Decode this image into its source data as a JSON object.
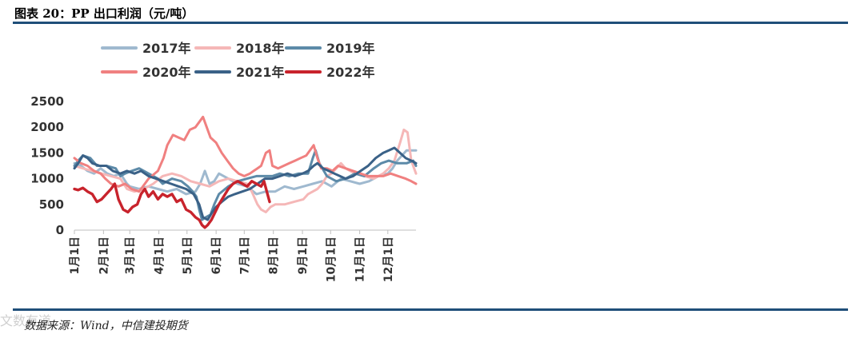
{
  "header": {
    "title": "图表 20：PP 出口利润（元/吨）"
  },
  "footer": {
    "source": "数据来源：Wind，中信建投期货",
    "watermark": "文数有道"
  },
  "chart_data": {
    "type": "line",
    "title": "",
    "xlabel": "",
    "ylabel": "",
    "ylim": [
      0,
      2500
    ],
    "yticks": [
      0,
      500,
      1000,
      1500,
      2000,
      2500
    ],
    "xtick_labels": [
      "1月1日",
      "2月1日",
      "3月1日",
      "4月1日",
      "5月1日",
      "6月1日",
      "7月1日",
      "8月1日",
      "9月1日",
      "10月1日",
      "11月1日",
      "12月1日"
    ],
    "xtick_days": [
      1,
      32,
      60,
      91,
      121,
      152,
      182,
      213,
      244,
      274,
      305,
      335
    ],
    "x_range_days": [
      1,
      365
    ],
    "grid": false,
    "legend_position": "top",
    "series": [
      {
        "name": "2017年",
        "color": "#9fb9cf",
        "points": [
          [
            1,
            1300
          ],
          [
            8,
            1250
          ],
          [
            15,
            1150
          ],
          [
            22,
            1100
          ],
          [
            29,
            1200
          ],
          [
            36,
            1100
          ],
          [
            43,
            1050
          ],
          [
            50,
            1100
          ],
          [
            57,
            900
          ],
          [
            60,
            850
          ],
          [
            70,
            800
          ],
          [
            80,
            850
          ],
          [
            90,
            800
          ],
          [
            100,
            750
          ],
          [
            110,
            800
          ],
          [
            120,
            700
          ],
          [
            130,
            750
          ],
          [
            135,
            900
          ],
          [
            140,
            1150
          ],
          [
            145,
            900
          ],
          [
            150,
            950
          ],
          [
            155,
            1100
          ],
          [
            165,
            1000
          ],
          [
            175,
            900
          ],
          [
            185,
            850
          ],
          [
            195,
            700
          ],
          [
            205,
            750
          ],
          [
            215,
            750
          ],
          [
            225,
            850
          ],
          [
            235,
            800
          ],
          [
            245,
            850
          ],
          [
            255,
            900
          ],
          [
            265,
            950
          ],
          [
            275,
            850
          ],
          [
            285,
            1000
          ],
          [
            295,
            950
          ],
          [
            305,
            900
          ],
          [
            315,
            950
          ],
          [
            325,
            1050
          ],
          [
            335,
            1100
          ],
          [
            340,
            1200
          ],
          [
            345,
            1350
          ],
          [
            350,
            1450
          ],
          [
            355,
            1550
          ],
          [
            365,
            1550
          ]
        ]
      },
      {
        "name": "2018年",
        "color": "#f5b7b7",
        "points": [
          [
            1,
            1250
          ],
          [
            10,
            1200
          ],
          [
            20,
            1150
          ],
          [
            30,
            1100
          ],
          [
            40,
            1050
          ],
          [
            50,
            1000
          ],
          [
            57,
            800
          ],
          [
            65,
            750
          ],
          [
            75,
            800
          ],
          [
            85,
            900
          ],
          [
            95,
            1050
          ],
          [
            105,
            1100
          ],
          [
            115,
            1050
          ],
          [
            125,
            950
          ],
          [
            135,
            900
          ],
          [
            145,
            850
          ],
          [
            155,
            950
          ],
          [
            165,
            1000
          ],
          [
            175,
            950
          ],
          [
            185,
            900
          ],
          [
            190,
            750
          ],
          [
            196,
            500
          ],
          [
            200,
            400
          ],
          [
            205,
            350
          ],
          [
            210,
            450
          ],
          [
            215,
            500
          ],
          [
            225,
            500
          ],
          [
            235,
            550
          ],
          [
            245,
            600
          ],
          [
            250,
            700
          ],
          [
            255,
            750
          ],
          [
            260,
            800
          ],
          [
            265,
            900
          ],
          [
            270,
            1050
          ],
          [
            275,
            1100
          ],
          [
            280,
            1200
          ],
          [
            285,
            1300
          ],
          [
            290,
            1200
          ],
          [
            300,
            1100
          ],
          [
            310,
            1050
          ],
          [
            320,
            1000
          ],
          [
            330,
            1100
          ],
          [
            336,
            1200
          ],
          [
            342,
            1350
          ],
          [
            348,
            1700
          ],
          [
            352,
            1950
          ],
          [
            356,
            1900
          ],
          [
            360,
            1350
          ],
          [
            365,
            1100
          ]
        ]
      },
      {
        "name": "2019年",
        "color": "#5c8aa8",
        "points": [
          [
            1,
            1250
          ],
          [
            5,
            1350
          ],
          [
            10,
            1450
          ],
          [
            18,
            1400
          ],
          [
            25,
            1250
          ],
          [
            35,
            1250
          ],
          [
            45,
            1200
          ],
          [
            50,
            1050
          ],
          [
            55,
            1100
          ],
          [
            62,
            1150
          ],
          [
            70,
            1200
          ],
          [
            80,
            1100
          ],
          [
            90,
            1000
          ],
          [
            95,
            900
          ],
          [
            105,
            1000
          ],
          [
            115,
            950
          ],
          [
            122,
            850
          ],
          [
            127,
            750
          ],
          [
            131,
            650
          ],
          [
            134,
            400
          ],
          [
            137,
            200
          ],
          [
            141,
            250
          ],
          [
            146,
            300
          ],
          [
            150,
            500
          ],
          [
            155,
            700
          ],
          [
            165,
            850
          ],
          [
            175,
            950
          ],
          [
            185,
            1000
          ],
          [
            195,
            1050
          ],
          [
            205,
            1050
          ],
          [
            212,
            1050
          ],
          [
            220,
            1100
          ],
          [
            230,
            1050
          ],
          [
            240,
            1100
          ],
          [
            250,
            1100
          ],
          [
            255,
            1400
          ],
          [
            258,
            1550
          ],
          [
            262,
            1300
          ],
          [
            270,
            1050
          ],
          [
            280,
            950
          ],
          [
            290,
            1000
          ],
          [
            300,
            1100
          ],
          [
            310,
            1050
          ],
          [
            320,
            1200
          ],
          [
            328,
            1300
          ],
          [
            336,
            1350
          ],
          [
            345,
            1300
          ],
          [
            355,
            1300
          ],
          [
            362,
            1350
          ],
          [
            365,
            1250
          ]
        ]
      },
      {
        "name": "2020年",
        "color": "#f08080",
        "points": [
          [
            1,
            1400
          ],
          [
            8,
            1300
          ],
          [
            15,
            1250
          ],
          [
            22,
            1150
          ],
          [
            29,
            1100
          ],
          [
            34,
            1000
          ],
          [
            40,
            900
          ],
          [
            48,
            850
          ],
          [
            55,
            900
          ],
          [
            62,
            800
          ],
          [
            70,
            750
          ],
          [
            80,
            1000
          ],
          [
            90,
            1150
          ],
          [
            96,
            1400
          ],
          [
            100,
            1650
          ],
          [
            106,
            1850
          ],
          [
            112,
            1800
          ],
          [
            118,
            1750
          ],
          [
            124,
            1950
          ],
          [
            130,
            2000
          ],
          [
            134,
            2100
          ],
          [
            138,
            2200
          ],
          [
            142,
            2000
          ],
          [
            146,
            1800
          ],
          [
            152,
            1700
          ],
          [
            158,
            1500
          ],
          [
            164,
            1350
          ],
          [
            170,
            1200
          ],
          [
            176,
            1100
          ],
          [
            182,
            1050
          ],
          [
            188,
            1100
          ],
          [
            192,
            1150
          ],
          [
            196,
            1200
          ],
          [
            200,
            1250
          ],
          [
            205,
            1500
          ],
          [
            209,
            1550
          ],
          [
            212,
            1250
          ],
          [
            218,
            1200
          ],
          [
            224,
            1250
          ],
          [
            230,
            1300
          ],
          [
            236,
            1350
          ],
          [
            242,
            1400
          ],
          [
            248,
            1450
          ],
          [
            252,
            1550
          ],
          [
            256,
            1650
          ],
          [
            260,
            1400
          ],
          [
            264,
            1200
          ],
          [
            270,
            1200
          ],
          [
            276,
            1150
          ],
          [
            282,
            1250
          ],
          [
            290,
            1200
          ],
          [
            298,
            1150
          ],
          [
            306,
            1100
          ],
          [
            314,
            1050
          ],
          [
            322,
            1050
          ],
          [
            330,
            1050
          ],
          [
            338,
            1100
          ],
          [
            346,
            1050
          ],
          [
            354,
            1000
          ],
          [
            360,
            950
          ],
          [
            365,
            900
          ]
        ]
      },
      {
        "name": "2021年",
        "color": "#3a6187",
        "points": [
          [
            1,
            1200
          ],
          [
            5,
            1300
          ],
          [
            10,
            1450
          ],
          [
            15,
            1400
          ],
          [
            20,
            1300
          ],
          [
            28,
            1250
          ],
          [
            35,
            1250
          ],
          [
            42,
            1150
          ],
          [
            50,
            1100
          ],
          [
            57,
            1150
          ],
          [
            65,
            1100
          ],
          [
            72,
            1150
          ],
          [
            80,
            1050
          ],
          [
            88,
            1000
          ],
          [
            96,
            950
          ],
          [
            104,
            900
          ],
          [
            112,
            850
          ],
          [
            120,
            800
          ],
          [
            128,
            700
          ],
          [
            134,
            500
          ],
          [
            138,
            250
          ],
          [
            143,
            200
          ],
          [
            148,
            350
          ],
          [
            152,
            450
          ],
          [
            158,
            550
          ],
          [
            165,
            650
          ],
          [
            172,
            700
          ],
          [
            180,
            750
          ],
          [
            188,
            800
          ],
          [
            196,
            900
          ],
          [
            204,
            1000
          ],
          [
            212,
            1000
          ],
          [
            220,
            1050
          ],
          [
            228,
            1100
          ],
          [
            236,
            1050
          ],
          [
            244,
            1100
          ],
          [
            250,
            1150
          ],
          [
            256,
            1250
          ],
          [
            260,
            1300
          ],
          [
            266,
            1200
          ],
          [
            272,
            1150
          ],
          [
            278,
            1100
          ],
          [
            284,
            1050
          ],
          [
            290,
            1000
          ],
          [
            298,
            1050
          ],
          [
            306,
            1150
          ],
          [
            314,
            1250
          ],
          [
            322,
            1400
          ],
          [
            330,
            1500
          ],
          [
            336,
            1550
          ],
          [
            342,
            1600
          ],
          [
            348,
            1500
          ],
          [
            354,
            1400
          ],
          [
            360,
            1350
          ],
          [
            365,
            1300
          ]
        ]
      },
      {
        "name": "2022年",
        "color": "#c8232c",
        "points": [
          [
            1,
            800
          ],
          [
            5,
            780
          ],
          [
            10,
            820
          ],
          [
            15,
            750
          ],
          [
            20,
            700
          ],
          [
            25,
            550
          ],
          [
            30,
            600
          ],
          [
            35,
            700
          ],
          [
            40,
            800
          ],
          [
            44,
            900
          ],
          [
            48,
            600
          ],
          [
            53,
            400
          ],
          [
            58,
            350
          ],
          [
            63,
            450
          ],
          [
            68,
            500
          ],
          [
            72,
            700
          ],
          [
            76,
            800
          ],
          [
            80,
            650
          ],
          [
            85,
            750
          ],
          [
            90,
            600
          ],
          [
            95,
            700
          ],
          [
            100,
            650
          ],
          [
            105,
            700
          ],
          [
            110,
            550
          ],
          [
            115,
            600
          ],
          [
            120,
            400
          ],
          [
            125,
            350
          ],
          [
            130,
            250
          ],
          [
            134,
            200
          ],
          [
            137,
            100
          ],
          [
            140,
            50
          ],
          [
            143,
            100
          ],
          [
            147,
            200
          ],
          [
            151,
            350
          ],
          [
            155,
            500
          ],
          [
            160,
            650
          ],
          [
            165,
            800
          ],
          [
            170,
            900
          ],
          [
            175,
            950
          ],
          [
            180,
            900
          ],
          [
            185,
            850
          ],
          [
            190,
            950
          ],
          [
            195,
            900
          ],
          [
            200,
            850
          ],
          [
            203,
            950
          ],
          [
            206,
            750
          ],
          [
            209,
            550
          ]
        ]
      }
    ]
  }
}
